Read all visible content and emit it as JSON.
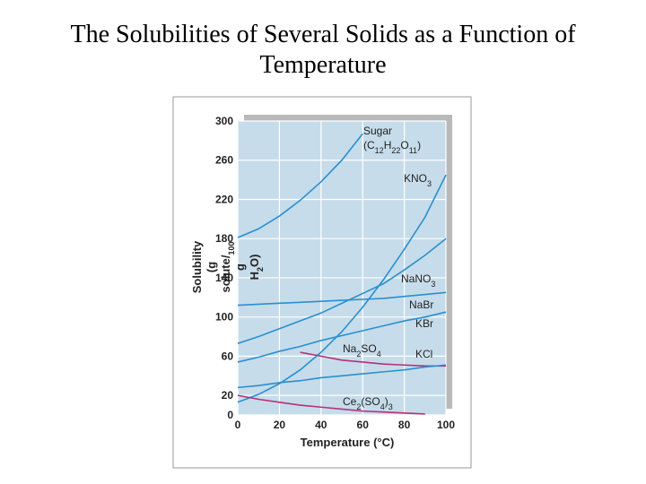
{
  "chart_data": {
    "type": "line",
    "title": "The Solubilities of Several Solids as a Function of Temperature",
    "x_label": "Temperature (°C)",
    "y_label": "Solubility (g solute/100 g H2O)",
    "x": [
      0,
      10,
      20,
      30,
      40,
      50,
      60,
      70,
      80,
      90,
      100
    ],
    "xlim": [
      0,
      100
    ],
    "xticks": [
      0,
      20,
      40,
      60,
      80,
      100
    ],
    "ylim": [
      0,
      300
    ],
    "yticks": [
      0,
      20,
      60,
      100,
      140,
      180,
      220,
      260,
      300
    ],
    "grid": true,
    "series": [
      {
        "name": "Sugar (C12H22O11)",
        "color": "#2a8fd0",
        "values": [
          181,
          190,
          203,
          219,
          238,
          260,
          287,
          null,
          null,
          null,
          null
        ]
      },
      {
        "name": "KNO3",
        "color": "#2a8fd0",
        "values": [
          13,
          21,
          32,
          46,
          64,
          85,
          110,
          138,
          169,
          202,
          245
        ]
      },
      {
        "name": "NaNO3",
        "color": "#2a8fd0",
        "values": [
          73,
          80,
          88,
          96,
          104,
          114,
          124,
          134,
          148,
          163,
          180
        ]
      },
      {
        "name": "NaBr",
        "color": "#2a8fd0",
        "values": [
          112,
          113,
          114,
          115,
          116,
          117,
          118,
          119,
          121,
          123,
          125
        ]
      },
      {
        "name": "KBr",
        "color": "#2a8fd0",
        "values": [
          54,
          59,
          65,
          70,
          76,
          81,
          86,
          91,
          96,
          100,
          105
        ]
      },
      {
        "name": "Na2SO4",
        "color": "#b5307a",
        "values": [
          null,
          null,
          null,
          64,
          60,
          56,
          54,
          52,
          51,
          50,
          50
        ]
      },
      {
        "name": "KCl",
        "color": "#2a8fd0",
        "values": [
          28,
          30,
          33,
          35,
          38,
          40,
          42,
          44,
          46,
          49,
          51
        ]
      },
      {
        "name": "Ce2(SO4)3",
        "color": "#b5307a",
        "values": [
          20,
          16,
          13,
          10,
          8,
          6,
          4,
          3,
          2,
          1,
          null
        ]
      }
    ]
  }
}
